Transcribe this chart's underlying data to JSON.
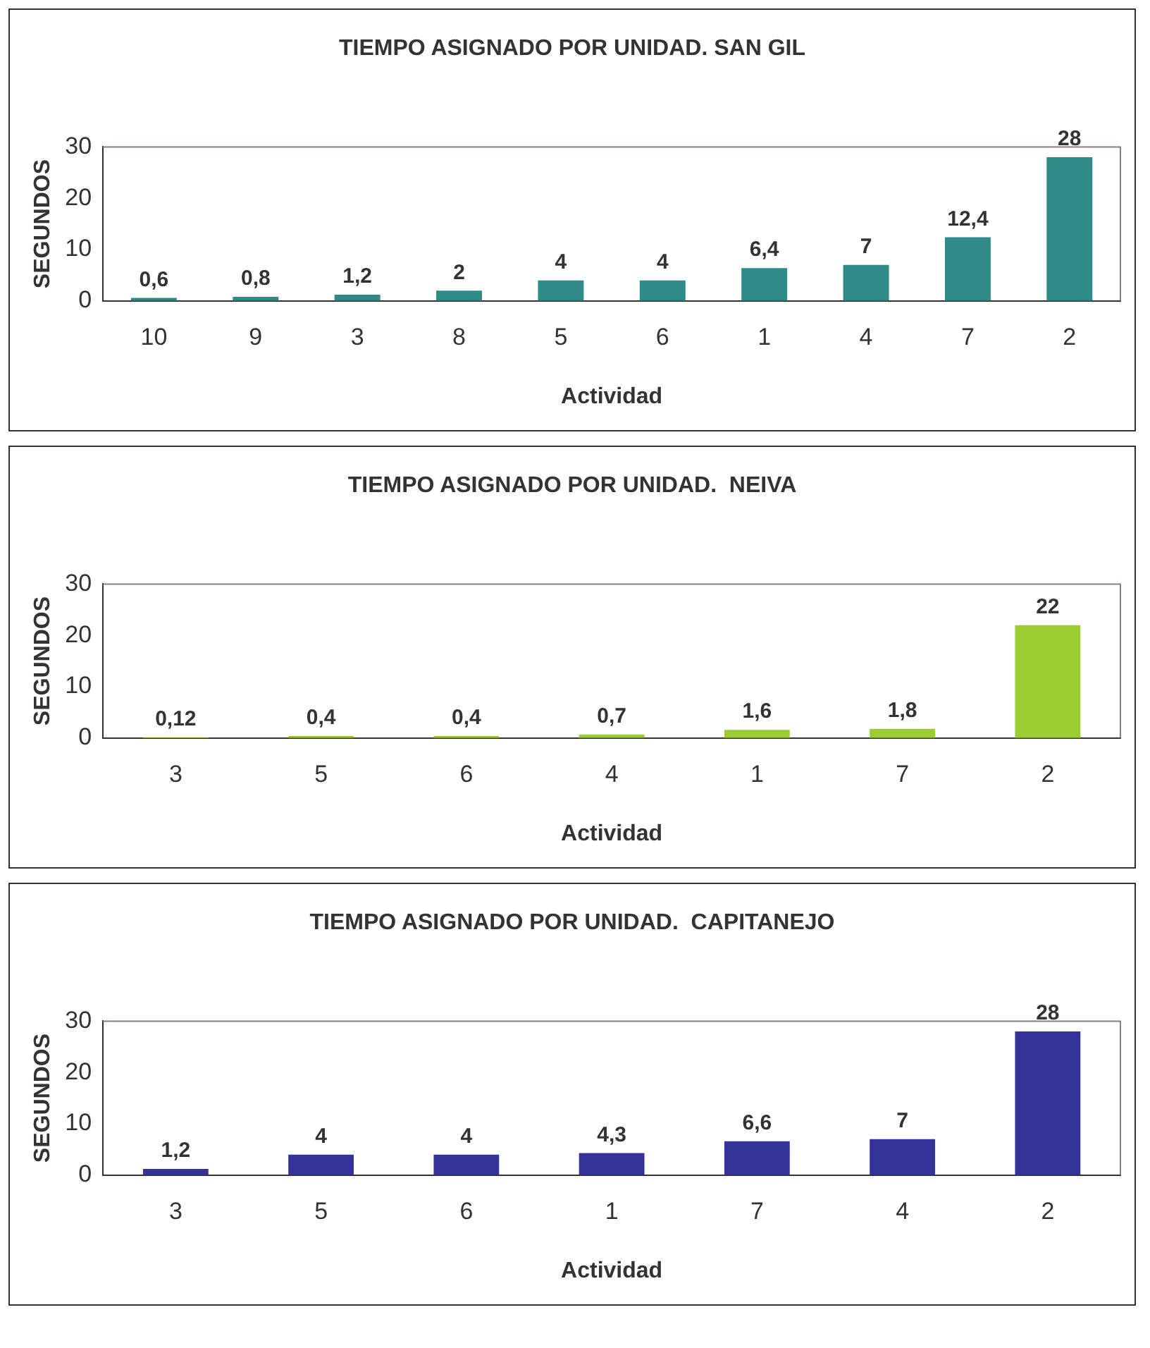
{
  "chart_data": [
    {
      "type": "bar",
      "title": "TIEMPO ASIGNADO POR UNIDAD. SAN GIL",
      "xlabel": "Actividad",
      "ylabel": "SEGUNDOS",
      "categories": [
        "10",
        "9",
        "3",
        "8",
        "5",
        "6",
        "1",
        "4",
        "7",
        "2"
      ],
      "values": [
        0.6,
        0.8,
        1.2,
        2,
        4,
        4,
        6.4,
        7,
        12.4,
        28
      ],
      "value_labels": [
        "0,6",
        "0,8",
        "1,2",
        "2",
        "4",
        "4",
        "6,4",
        "7",
        "12,4",
        "28"
      ],
      "color": "#2e8b87",
      "ylim": [
        0,
        30
      ],
      "yticks": [
        0,
        10,
        20,
        30
      ],
      "grid": false,
      "legend": false
    },
    {
      "type": "bar",
      "title": "TIEMPO ASIGNADO POR UNIDAD.  NEIVA",
      "xlabel": "Actividad",
      "ylabel": "SEGUNDOS",
      "categories": [
        "3",
        "5",
        "6",
        "4",
        "1",
        "7",
        "2"
      ],
      "values": [
        0.12,
        0.4,
        0.4,
        0.7,
        1.6,
        1.8,
        22
      ],
      "value_labels": [
        "0,12",
        "0,4",
        "0,4",
        "0,7",
        "1,6",
        "1,8",
        "22"
      ],
      "color": "#9acd32",
      "ylim": [
        0,
        30
      ],
      "yticks": [
        0,
        10,
        20,
        30
      ],
      "grid": false,
      "legend": false
    },
    {
      "type": "bar",
      "title": "TIEMPO ASIGNADO POR UNIDAD.  CAPITANEJO",
      "xlabel": "Actividad",
      "ylabel": "SEGUNDOS",
      "categories": [
        "3",
        "5",
        "6",
        "1",
        "7",
        "4",
        "2"
      ],
      "values": [
        1.2,
        4,
        4,
        4.3,
        6.6,
        7,
        28
      ],
      "value_labels": [
        "1,2",
        "4",
        "4",
        "4,3",
        "6,6",
        "7",
        "28"
      ],
      "color": "#333399",
      "ylim": [
        0,
        30
      ],
      "yticks": [
        0,
        10,
        20,
        30
      ],
      "grid": false,
      "legend": false
    }
  ]
}
